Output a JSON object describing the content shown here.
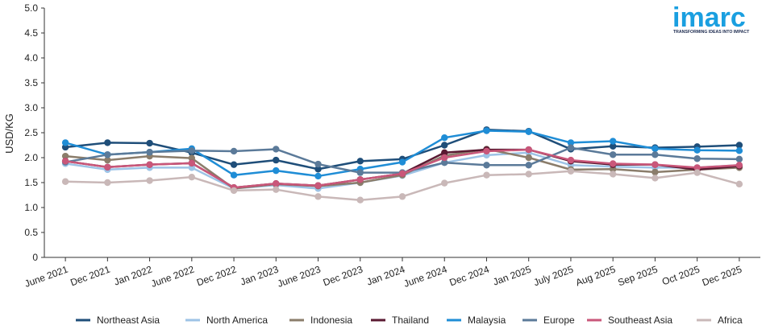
{
  "chart_data": {
    "type": "line",
    "title": "",
    "xlabel": "",
    "ylabel": "USD/KG",
    "ylim": [
      0,
      5
    ],
    "yticks": [
      "0",
      "0.5",
      "1.0",
      "1.5",
      "2.0",
      "2.5",
      "3.0",
      "3.5",
      "4.0",
      "4.5",
      "5.0"
    ],
    "grid": false,
    "legend_position": "bottom",
    "categories": [
      "June 2021",
      "Dec 2021",
      "Jan 2022",
      "June 2022",
      "Dec 2022",
      "Jan 2023",
      "June 2023",
      "Dec 2023",
      "Jan 2024",
      "June 2024",
      "Dec 2024",
      "Jan 2025",
      "July 2025",
      "Aug 2025",
      "Sep 2025",
      "Oct 2025",
      "Dec 2025"
    ],
    "series": [
      {
        "name": "Northeast Asia",
        "color": "#1f4e79",
        "values": [
          2.21,
          2.3,
          2.29,
          2.1,
          1.86,
          1.95,
          1.77,
          1.93,
          1.97,
          2.25,
          2.56,
          2.53,
          2.17,
          2.23,
          2.2,
          2.22,
          2.25
        ]
      },
      {
        "name": "North America",
        "color": "#9dc3e6",
        "values": [
          1.88,
          1.76,
          1.8,
          1.8,
          1.38,
          1.45,
          1.38,
          1.5,
          1.64,
          1.9,
          2.05,
          2.1,
          1.85,
          1.82,
          1.8,
          1.8,
          1.85
        ]
      },
      {
        "name": "Indonesia",
        "color": "#8b7d6b",
        "values": [
          2.03,
          1.95,
          2.03,
          1.99,
          1.38,
          1.47,
          1.43,
          1.5,
          1.65,
          2.04,
          2.17,
          2.0,
          1.76,
          1.77,
          1.71,
          1.76,
          1.8
        ]
      },
      {
        "name": "Thailand",
        "color": "#5a1a32",
        "values": [
          1.93,
          1.81,
          1.86,
          1.89,
          1.4,
          1.48,
          1.44,
          1.56,
          1.68,
          2.1,
          2.16,
          2.16,
          1.93,
          1.86,
          1.86,
          1.76,
          1.83
        ]
      },
      {
        "name": "Malaysia",
        "color": "#1f8dd6",
        "values": [
          2.3,
          2.06,
          2.11,
          2.18,
          1.65,
          1.74,
          1.63,
          1.77,
          1.91,
          2.4,
          2.54,
          2.52,
          2.3,
          2.33,
          2.18,
          2.15,
          2.14
        ]
      },
      {
        "name": "Europe",
        "color": "#5b7a99",
        "values": [
          1.91,
          2.06,
          2.11,
          2.14,
          2.13,
          2.17,
          1.87,
          1.7,
          1.7,
          1.9,
          1.85,
          1.85,
          2.2,
          2.06,
          2.06,
          1.98,
          1.97
        ]
      },
      {
        "name": "Southeast Asia",
        "color": "#c9577a",
        "values": [
          1.93,
          1.81,
          1.86,
          1.89,
          1.4,
          1.48,
          1.44,
          1.56,
          1.68,
          2.0,
          2.13,
          2.16,
          1.95,
          1.88,
          1.86,
          1.8,
          1.85
        ]
      },
      {
        "name": "Africa",
        "color": "#c9b8b8",
        "values": [
          1.52,
          1.5,
          1.54,
          1.61,
          1.34,
          1.36,
          1.22,
          1.15,
          1.22,
          1.49,
          1.65,
          1.67,
          1.73,
          1.67,
          1.59,
          1.7,
          1.47
        ]
      }
    ]
  },
  "logo": {
    "word": "imarc",
    "tagline": "TRANSFORMING IDEAS INTO IMPACT",
    "color": "#1a9fe0"
  }
}
